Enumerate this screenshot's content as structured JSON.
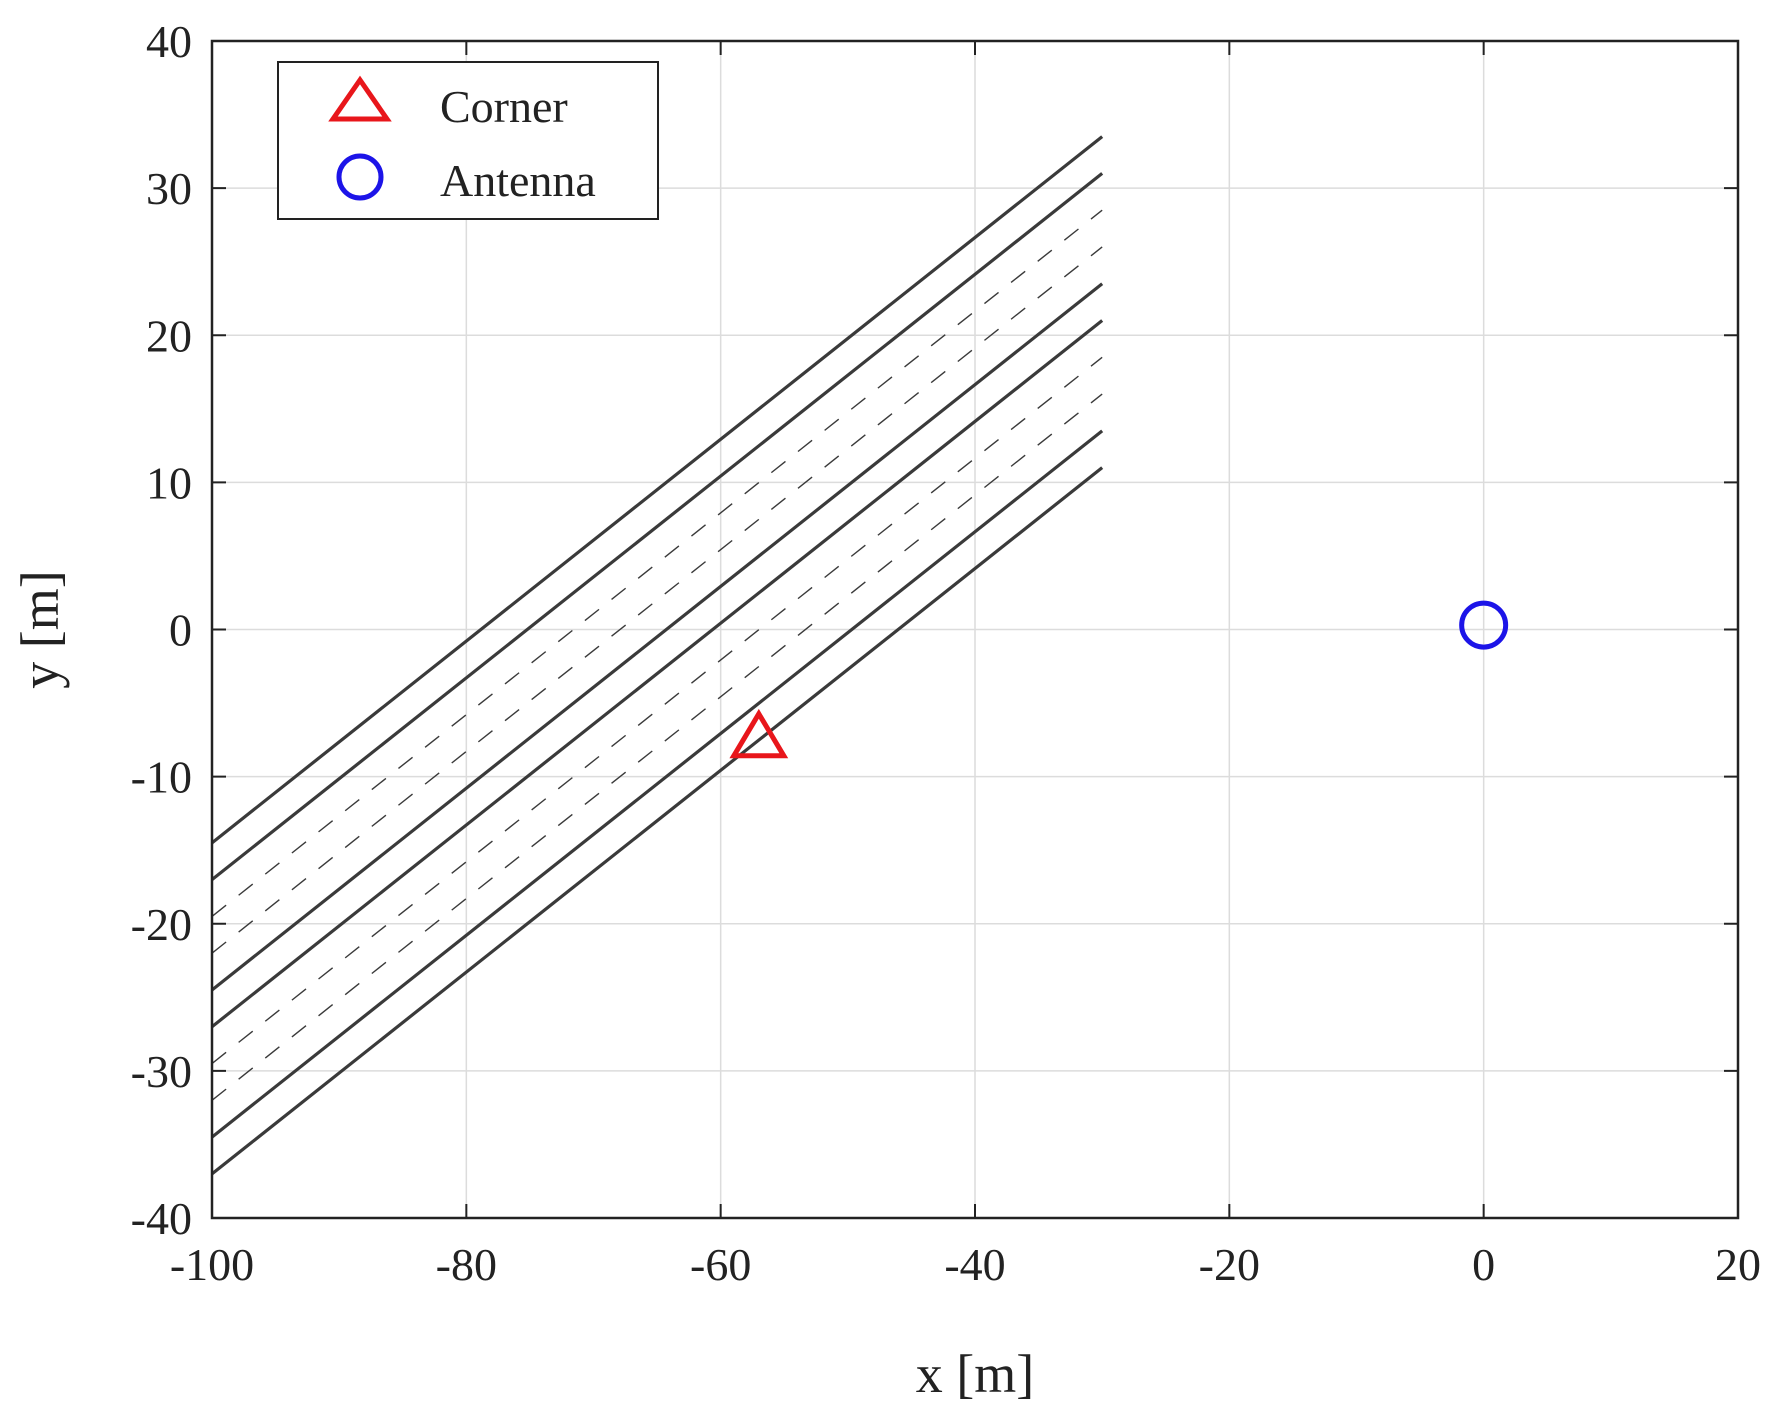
{
  "chart_data": {
    "type": "line",
    "title": "",
    "xlabel": "x [m]",
    "ylabel": "y [m]",
    "xlim": [
      -100,
      20
    ],
    "ylim": [
      -40,
      40
    ],
    "x_ticks": [
      -100,
      -80,
      -60,
      -40,
      -20,
      0,
      20
    ],
    "y_ticks": [
      -40,
      -30,
      -20,
      -10,
      0,
      10,
      20,
      30,
      40
    ],
    "x_tick_labels": [
      "-100",
      "-80",
      "-60",
      "-40",
      "-20",
      "0",
      "20"
    ],
    "y_tick_labels": [
      "-40",
      "-30",
      "-20",
      "-10",
      "0",
      "10",
      "20",
      "30",
      "40"
    ],
    "grid": true,
    "legend": {
      "placement": "top-left",
      "entries": [
        {
          "label": "Corner",
          "marker": "triangle",
          "color": "#e8161b"
        },
        {
          "label": "Antenna",
          "marker": "circle",
          "color": "#1c14e8"
        }
      ]
    },
    "lane_lines": {
      "style": "solid",
      "color": "#3a3a3a",
      "lines": [
        {
          "x": [
            -100,
            -30
          ],
          "y": [
            -14.5,
            33.5
          ]
        },
        {
          "x": [
            -100,
            -30
          ],
          "y": [
            -17.0,
            31.0
          ]
        },
        {
          "x": [
            -100,
            -30
          ],
          "y": [
            -24.5,
            23.5
          ]
        },
        {
          "x": [
            -100,
            -30
          ],
          "y": [
            -27.0,
            21.0
          ]
        },
        {
          "x": [
            -100,
            -30
          ],
          "y": [
            -34.5,
            13.5
          ]
        },
        {
          "x": [
            -100,
            -30
          ],
          "y": [
            -37.0,
            11.0
          ]
        }
      ]
    },
    "lane_markings": {
      "style": "dashed",
      "color": "#3a3a3a",
      "lines": [
        {
          "x": [
            -100,
            -30
          ],
          "y": [
            -19.5,
            28.5
          ]
        },
        {
          "x": [
            -100,
            -30
          ],
          "y": [
            -22.0,
            26.0
          ]
        },
        {
          "x": [
            -100,
            -30
          ],
          "y": [
            -29.5,
            18.5
          ]
        },
        {
          "x": [
            -100,
            -30
          ],
          "y": [
            -32.0,
            16.0
          ]
        }
      ]
    },
    "series": [
      {
        "name": "Corner",
        "marker": "triangle",
        "color": "#e8161b",
        "x": [
          -57
        ],
        "y": [
          -7.5
        ]
      },
      {
        "name": "Antenna",
        "marker": "circle",
        "color": "#1c14e8",
        "x": [
          0
        ],
        "y": [
          0.3
        ]
      }
    ]
  }
}
